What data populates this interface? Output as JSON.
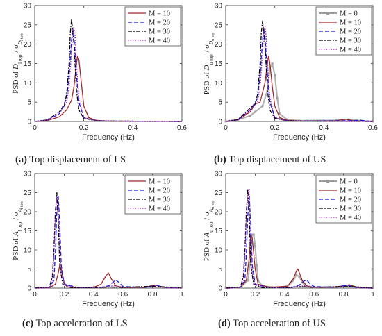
{
  "colors": {
    "M0": "#9a9a9a",
    "M10": "#a0282d",
    "M20": "#1a1ad6",
    "M30": "#000000",
    "M40": "#a020c0",
    "axis": "#333333"
  },
  "chart_data": [
    {
      "type": "line",
      "panel": "a",
      "caption_letter": "(a)",
      "caption_text": " Top displacement of LS",
      "xlabel": "Frequency (Hz)",
      "ylabel_parts": [
        "PSD  of  ",
        "D",
        "l top",
        " / ",
        "σ",
        "D",
        "l top"
      ],
      "xlim": [
        0,
        0.6
      ],
      "ylim": [
        0,
        30
      ],
      "xticks": [
        0,
        0.2,
        0.4,
        0.6
      ],
      "xtick_labels": [
        "0",
        "0.2",
        "0.4",
        "0.6"
      ],
      "yticks": [
        0,
        5,
        10,
        15,
        20,
        25,
        30
      ],
      "ytick_labels": [
        "0",
        "5",
        "10",
        "15",
        "20",
        "25",
        "30"
      ],
      "legend_position": "top-right",
      "series": [
        {
          "name": "M = 10",
          "key": "M10",
          "dash": "solid",
          "marker": "none",
          "x": [
            0,
            0.05,
            0.1,
            0.13,
            0.15,
            0.16,
            0.17,
            0.175,
            0.18,
            0.19,
            0.2,
            0.22,
            0.25,
            0.3,
            0.6
          ],
          "y": [
            0,
            0.2,
            1.2,
            3,
            5.5,
            9,
            15,
            17,
            16,
            10,
            4,
            1,
            0.3,
            0.1,
            0
          ]
        },
        {
          "name": "M = 20",
          "key": "M20",
          "dash": "6,3",
          "marker": "none",
          "x": [
            0,
            0.05,
            0.1,
            0.13,
            0.14,
            0.15,
            0.155,
            0.16,
            0.17,
            0.18,
            0.2,
            0.25,
            0.3,
            0.6
          ],
          "y": [
            0,
            0.3,
            2,
            6,
            12,
            21,
            24,
            22,
            12,
            5,
            1,
            0.2,
            0.1,
            0
          ]
        },
        {
          "name": "M = 30",
          "key": "M30",
          "dash": "6,2,2,2",
          "marker": "none",
          "x": [
            0,
            0.05,
            0.1,
            0.12,
            0.13,
            0.14,
            0.145,
            0.15,
            0.16,
            0.17,
            0.18,
            0.2,
            0.25,
            0.3,
            0.6
          ],
          "y": [
            0,
            0.4,
            2.5,
            4,
            7,
            15,
            23,
            26.5,
            20,
            8,
            3,
            0.8,
            0.2,
            0.1,
            0
          ]
        },
        {
          "name": "M = 40",
          "key": "M40",
          "dash": "1.5,2",
          "marker": "none",
          "x": [
            0,
            0.05,
            0.1,
            0.13,
            0.14,
            0.15,
            0.155,
            0.16,
            0.165,
            0.17,
            0.18,
            0.2,
            0.25,
            0.3,
            0.6
          ],
          "y": [
            0,
            0.3,
            2,
            5,
            9,
            18,
            23,
            24.5,
            22,
            15,
            6,
            1,
            0.2,
            0.1,
            0
          ]
        }
      ]
    },
    {
      "type": "line",
      "panel": "b",
      "caption_letter": "(b)",
      "caption_text": " Top displacement of US",
      "xlabel": "Frequency (Hz)",
      "ylabel_parts": [
        "PSD  of  ",
        "D",
        "u top",
        " / ",
        "σ",
        "D",
        "u top"
      ],
      "xlim": [
        0,
        0.6
      ],
      "ylim": [
        0,
        30
      ],
      "xticks": [
        0,
        0.2,
        0.4,
        0.6
      ],
      "xtick_labels": [
        "0",
        "0.2",
        "0.4",
        "0.6"
      ],
      "yticks": [
        0,
        5,
        10,
        15,
        20,
        25,
        30
      ],
      "ytick_labels": [
        "0",
        "5",
        "10",
        "15",
        "20",
        "25",
        "30"
      ],
      "legend_position": "top-right",
      "series": [
        {
          "name": "M = 0",
          "key": "M0",
          "dash": "solid",
          "marker": "square",
          "x": [
            0,
            0.05,
            0.1,
            0.12,
            0.15,
            0.17,
            0.18,
            0.19,
            0.2,
            0.21,
            0.22,
            0.25,
            0.3,
            0.45,
            0.5,
            0.55,
            0.6
          ],
          "y": [
            0,
            0.5,
            1.5,
            2.5,
            4,
            8,
            14,
            15,
            12,
            6,
            2,
            0.5,
            0.2,
            0.3,
            0.5,
            0.2,
            0
          ]
        },
        {
          "name": "M = 10",
          "key": "M10",
          "dash": "solid",
          "marker": "none",
          "x": [
            0,
            0.05,
            0.1,
            0.12,
            0.14,
            0.16,
            0.17,
            0.175,
            0.18,
            0.19,
            0.2,
            0.22,
            0.25,
            0.3,
            0.45,
            0.49,
            0.52,
            0.6
          ],
          "y": [
            0,
            0.4,
            2.5,
            4.5,
            5,
            10,
            15,
            17,
            15,
            9,
            4,
            1,
            0.3,
            0.1,
            0.2,
            0.6,
            0.2,
            0
          ]
        },
        {
          "name": "M = 20",
          "key": "M20",
          "dash": "6,3",
          "marker": "none",
          "x": [
            0,
            0.05,
            0.1,
            0.13,
            0.14,
            0.15,
            0.155,
            0.16,
            0.17,
            0.18,
            0.2,
            0.25,
            0.3,
            0.5,
            0.55,
            0.6
          ],
          "y": [
            0,
            0.4,
            3,
            6,
            12,
            21,
            24,
            22,
            12,
            5,
            1,
            0.2,
            0.1,
            0.2,
            0.3,
            0
          ]
        },
        {
          "name": "M = 30",
          "key": "M30",
          "dash": "6,2,2,2",
          "marker": "none",
          "x": [
            0,
            0.05,
            0.1,
            0.12,
            0.13,
            0.14,
            0.145,
            0.15,
            0.16,
            0.17,
            0.18,
            0.2,
            0.25,
            0.3,
            0.6
          ],
          "y": [
            0,
            0.5,
            3.5,
            4.5,
            7,
            15,
            23,
            26,
            20,
            8,
            3,
            0.8,
            0.2,
            0.1,
            0
          ]
        },
        {
          "name": "M = 40",
          "key": "M40",
          "dash": "1.5,2",
          "marker": "none",
          "x": [
            0,
            0.05,
            0.1,
            0.13,
            0.14,
            0.15,
            0.155,
            0.16,
            0.165,
            0.17,
            0.18,
            0.2,
            0.25,
            0.3,
            0.6
          ],
          "y": [
            0,
            0.4,
            3,
            5,
            9,
            18,
            23,
            24.5,
            22,
            15,
            6,
            1,
            0.2,
            0.1,
            0
          ]
        }
      ]
    },
    {
      "type": "line",
      "panel": "c",
      "caption_letter": "(c)",
      "caption_text": " Top acceleration of LS",
      "xlabel": "Frequency (Hz)",
      "ylabel_parts": [
        "PSD  of  ",
        "A",
        "l top",
        " / ",
        "σ",
        "A",
        "l top"
      ],
      "xlim": [
        0,
        1
      ],
      "ylim": [
        0,
        30
      ],
      "xticks": [
        0,
        0.2,
        0.4,
        0.6,
        0.8,
        1
      ],
      "xtick_labels": [
        "0",
        "0.2",
        "0.4",
        "0.6",
        "0.8",
        "1"
      ],
      "yticks": [
        0,
        5,
        10,
        15,
        20,
        25,
        30
      ],
      "ytick_labels": [
        "0",
        "5",
        "10",
        "15",
        "20",
        "25",
        "30"
      ],
      "legend_position": "top-right",
      "series": [
        {
          "name": "M = 10",
          "key": "M10",
          "dash": "solid",
          "marker": "none",
          "x": [
            0,
            0.1,
            0.14,
            0.16,
            0.17,
            0.18,
            0.19,
            0.2,
            0.22,
            0.3,
            0.4,
            0.45,
            0.48,
            0.5,
            0.52,
            0.55,
            0.6,
            0.75,
            0.8,
            0.82,
            0.85,
            0.9,
            1
          ],
          "y": [
            0,
            0.1,
            1,
            4,
            6,
            5,
            3,
            1.5,
            0.3,
            0.1,
            0.2,
            1,
            3,
            4,
            2.5,
            0.6,
            0.2,
            0.2,
            0.7,
            0.8,
            0.4,
            0.1,
            0
          ]
        },
        {
          "name": "M = 20",
          "key": "M20",
          "dash": "6,3",
          "marker": "none",
          "x": [
            0,
            0.1,
            0.13,
            0.14,
            0.15,
            0.16,
            0.17,
            0.18,
            0.2,
            0.3,
            0.45,
            0.5,
            0.53,
            0.55,
            0.58,
            0.6,
            0.75,
            0.8,
            0.83,
            0.86,
            0.9,
            1
          ],
          "y": [
            0,
            0.2,
            2,
            9,
            20,
            24,
            17,
            6,
            1,
            0.1,
            0.2,
            0.6,
            1.5,
            2.2,
            1.2,
            0.4,
            0.2,
            0.5,
            0.7,
            0.4,
            0.1,
            0
          ]
        },
        {
          "name": "M = 30",
          "key": "M30",
          "dash": "6,2,2,2",
          "marker": "none",
          "x": [
            0,
            0.1,
            0.12,
            0.13,
            0.14,
            0.15,
            0.16,
            0.17,
            0.19,
            0.25,
            0.4,
            0.5,
            0.6,
            0.8,
            0.85,
            1
          ],
          "y": [
            0,
            0.3,
            3,
            10,
            20,
            25,
            18,
            6,
            1,
            0.1,
            0.1,
            0.3,
            0.2,
            0.5,
            0.4,
            0
          ]
        },
        {
          "name": "M = 40",
          "key": "M40",
          "dash": "1.5,2",
          "marker": "none",
          "x": [
            0,
            0.1,
            0.12,
            0.13,
            0.14,
            0.15,
            0.16,
            0.17,
            0.18,
            0.2,
            0.3,
            0.45,
            0.5,
            0.55,
            0.6,
            0.8,
            0.85,
            1
          ],
          "y": [
            0,
            0.2,
            2,
            8,
            18,
            24,
            23,
            12,
            4,
            0.8,
            0.1,
            0.2,
            0.5,
            0.6,
            0.2,
            0.3,
            0.3,
            0
          ]
        }
      ]
    },
    {
      "type": "line",
      "panel": "d",
      "caption_letter": "(d)",
      "caption_text": " Top acceleration of US",
      "xlabel": "Frequency (Hz)",
      "ylabel_parts": [
        "PSD  of  ",
        "A",
        "u top",
        " / ",
        "σ",
        "A",
        "u top"
      ],
      "xlim": [
        0,
        1
      ],
      "ylim": [
        0,
        30
      ],
      "xticks": [
        0,
        0.2,
        0.4,
        0.6,
        0.8,
        1
      ],
      "xtick_labels": [
        "0",
        "0.2",
        "0.4",
        "0.6",
        "0.8",
        "1"
      ],
      "yticks": [
        0,
        5,
        10,
        15,
        20,
        25,
        30
      ],
      "ytick_labels": [
        "0",
        "5",
        "10",
        "15",
        "20",
        "25",
        "30"
      ],
      "legend_position": "top-right",
      "series": [
        {
          "name": "M = 0",
          "key": "M0",
          "dash": "solid",
          "marker": "square",
          "x": [
            0,
            0.1,
            0.15,
            0.17,
            0.18,
            0.19,
            0.2,
            0.21,
            0.22,
            0.25,
            0.35,
            0.42,
            0.46,
            0.48,
            0.5,
            0.52,
            0.55,
            0.6,
            0.75,
            0.8,
            0.85,
            0.9,
            1
          ],
          "y": [
            0,
            0.2,
            2,
            8,
            14,
            14,
            11,
            6,
            2,
            0.5,
            0.2,
            0.5,
            2,
            3.5,
            3,
            1.5,
            0.4,
            0.2,
            0.3,
            0.6,
            0.5,
            0.2,
            0
          ]
        },
        {
          "name": "M = 10",
          "key": "M10",
          "dash": "solid",
          "marker": "none",
          "x": [
            0,
            0.1,
            0.14,
            0.16,
            0.17,
            0.18,
            0.19,
            0.2,
            0.22,
            0.3,
            0.42,
            0.46,
            0.48,
            0.49,
            0.5,
            0.52,
            0.55,
            0.6,
            0.75,
            0.8,
            0.84,
            0.87,
            0.9,
            1
          ],
          "y": [
            0,
            0.2,
            2,
            8,
            14,
            13,
            9,
            5,
            1,
            0.2,
            0.5,
            2.5,
            4.5,
            5,
            4,
            2,
            0.6,
            0.2,
            0.3,
            0.6,
            0.9,
            0.5,
            0.1,
            0
          ]
        },
        {
          "name": "M = 20",
          "key": "M20",
          "dash": "6,3",
          "marker": "none",
          "x": [
            0,
            0.1,
            0.13,
            0.14,
            0.15,
            0.16,
            0.17,
            0.18,
            0.2,
            0.3,
            0.45,
            0.5,
            0.53,
            0.55,
            0.57,
            0.6,
            0.75,
            0.8,
            0.83,
            0.86,
            0.9,
            1
          ],
          "y": [
            0,
            0.2,
            2,
            9,
            19,
            24,
            17,
            6,
            1,
            0.1,
            0.2,
            0.8,
            1.8,
            2.2,
            1.2,
            0.4,
            0.2,
            0.6,
            0.7,
            0.4,
            0.1,
            0
          ]
        },
        {
          "name": "M = 30",
          "key": "M30",
          "dash": "6,2,2,2",
          "marker": "none",
          "x": [
            0,
            0.1,
            0.12,
            0.13,
            0.14,
            0.15,
            0.16,
            0.17,
            0.19,
            0.25,
            0.4,
            0.5,
            0.6,
            0.8,
            0.85,
            1
          ],
          "y": [
            0,
            0.3,
            3,
            10,
            20,
            26,
            19,
            6,
            1,
            0.1,
            0.1,
            0.4,
            0.2,
            0.4,
            0.4,
            0
          ]
        },
        {
          "name": "M = 40",
          "key": "M40",
          "dash": "1.5,2",
          "marker": "none",
          "x": [
            0,
            0.1,
            0.12,
            0.13,
            0.14,
            0.15,
            0.16,
            0.17,
            0.18,
            0.2,
            0.3,
            0.45,
            0.5,
            0.55,
            0.6,
            0.8,
            0.85,
            1
          ],
          "y": [
            0,
            0.2,
            2,
            8,
            18,
            24,
            26,
            14,
            4,
            0.8,
            0.1,
            0.2,
            0.5,
            0.6,
            0.2,
            0.3,
            0.3,
            0
          ]
        }
      ]
    }
  ]
}
